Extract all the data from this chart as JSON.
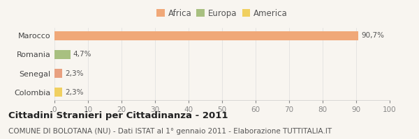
{
  "categories": [
    "Colombia",
    "Senegal",
    "Romania",
    "Marocco"
  ],
  "values": [
    2.3,
    2.3,
    4.7,
    90.7
  ],
  "colors": [
    "#f0d060",
    "#e8a080",
    "#a8c080",
    "#f0a878"
  ],
  "labels": [
    "2,3%",
    "2,3%",
    "4,7%",
    "90,7%"
  ],
  "legend": [
    {
      "label": "Africa",
      "color": "#f0a878"
    },
    {
      "label": "Europa",
      "color": "#a8c080"
    },
    {
      "label": "America",
      "color": "#f0d060"
    }
  ],
  "xlim": [
    0,
    100
  ],
  "xticks": [
    0,
    10,
    20,
    30,
    40,
    50,
    60,
    70,
    80,
    90,
    100
  ],
  "title": "Cittadini Stranieri per Cittadinanza - 2011",
  "subtitle": "COMUNE DI BOLOTANA (NU) - Dati ISTAT al 1° gennaio 2011 - Elaborazione TUTTITALIA.IT",
  "background_color": "#f8f5f0",
  "bar_height": 0.5,
  "title_fontsize": 9.5,
  "subtitle_fontsize": 7.5,
  "label_fontsize": 7.5,
  "tick_fontsize": 7.5,
  "ytick_fontsize": 8,
  "legend_fontsize": 8.5
}
